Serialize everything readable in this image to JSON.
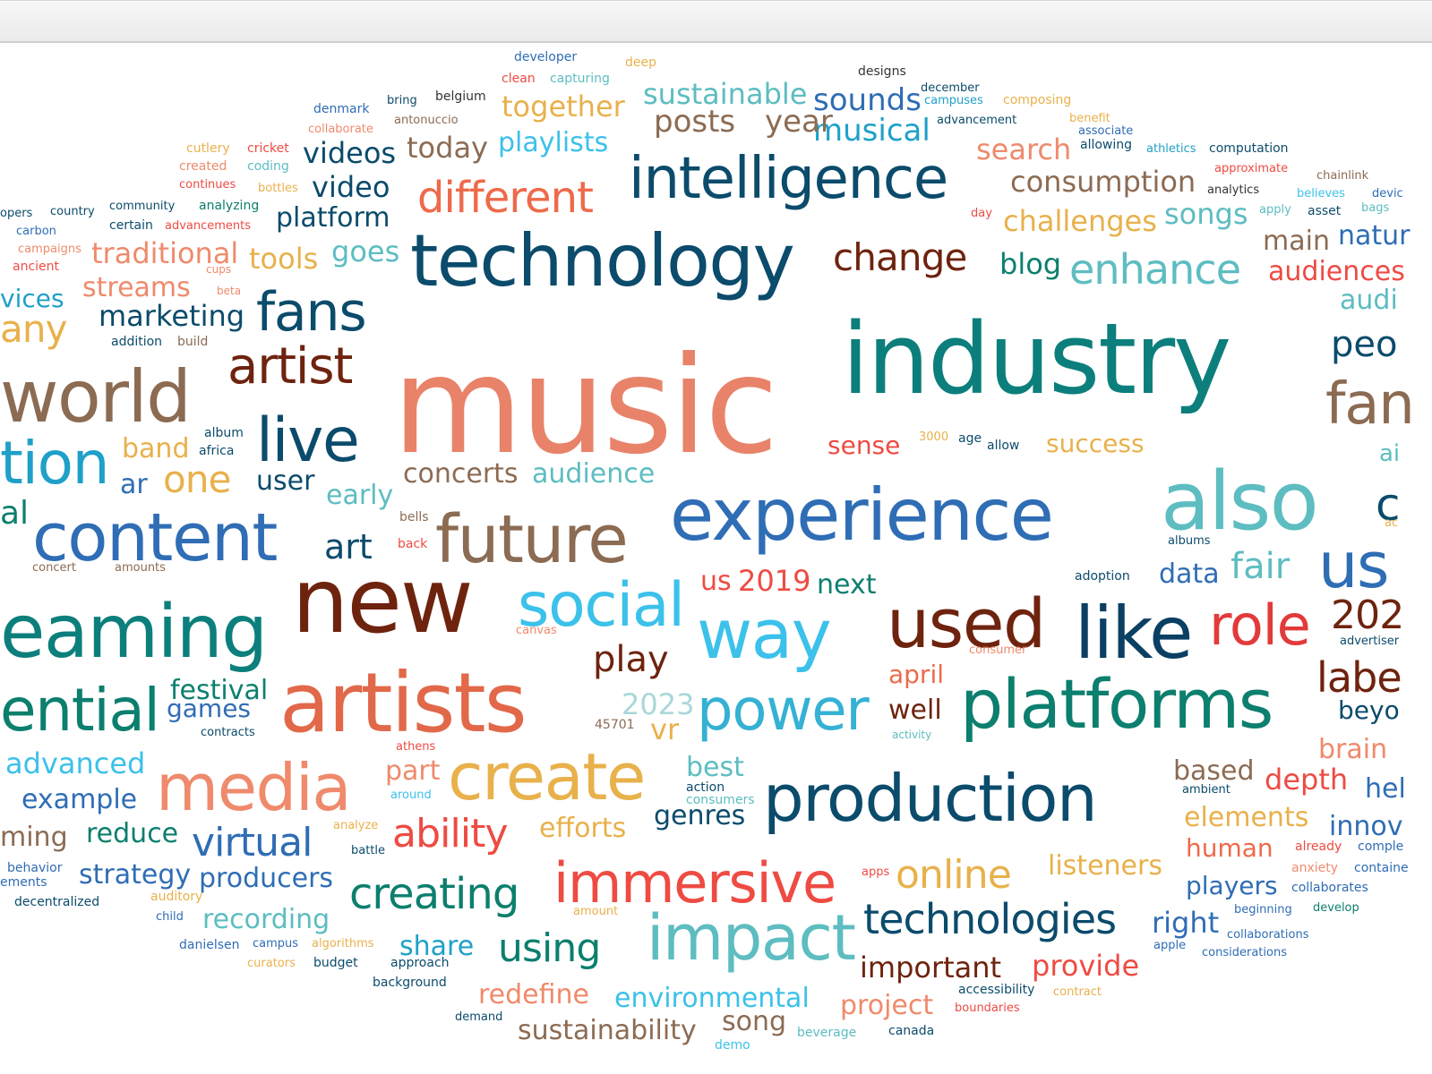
{
  "palette": [
    "#e2785c",
    "#0c7f80",
    "#0b4b6b",
    "#7c2b14",
    "#2f6db5",
    "#35b1d3",
    "#e8b14b",
    "#ee4b43",
    "#5db9bf",
    "#8c6b53",
    "#f08b50",
    "#4da0c9"
  ],
  "words": [
    {
      "t": "music",
      "c": "#e8836a"
    },
    {
      "t": "industry",
      "c": "#0c7f7c"
    },
    {
      "t": "technology",
      "c": "#0b4b6b"
    },
    {
      "t": "experience",
      "c": "#2f6db5"
    },
    {
      "t": "also",
      "c": "#5dbdc1"
    },
    {
      "t": "artists",
      "c": "#e2684a"
    },
    {
      "t": "new",
      "c": "#6e230e"
    },
    {
      "t": "intelligence",
      "c": "#0b4b6b"
    },
    {
      "t": "way",
      "c": "#3cc1ea"
    },
    {
      "t": "production",
      "c": "#0b4b6b"
    },
    {
      "t": "platforms",
      "c": "#0c7f6e"
    },
    {
      "t": "media",
      "c": "#ef8a6c"
    },
    {
      "t": "create",
      "c": "#e8b14b"
    },
    {
      "t": "content",
      "c": "#2f6db5"
    },
    {
      "t": "future",
      "c": "#8c6b53"
    },
    {
      "t": "like",
      "c": "#0b3f63"
    },
    {
      "t": "used",
      "c": "#6e230e"
    },
    {
      "t": "impact",
      "c": "#5dbdc1"
    },
    {
      "t": "immersive",
      "c": "#ee4b43"
    },
    {
      "t": "live",
      "c": "#0b4b6b"
    },
    {
      "t": "world",
      "c": "#8c6b53"
    },
    {
      "t": "eaming",
      "c": "#0c7f7c"
    },
    {
      "t": "fans",
      "c": "#0b4b6b"
    },
    {
      "t": "artist",
      "c": "#6e230e"
    },
    {
      "t": "social",
      "c": "#3cc1ea"
    },
    {
      "t": "power",
      "c": "#35b1d3"
    },
    {
      "t": "role",
      "c": "#e23a3a"
    },
    {
      "t": "ential",
      "c": "#0c7f6e"
    },
    {
      "t": "tion",
      "c": "#1fa0c9"
    },
    {
      "t": "different",
      "c": "#ee6a4a"
    },
    {
      "t": "technologies",
      "c": "#0b4b6b"
    },
    {
      "t": "creating",
      "c": "#0c7f6e"
    },
    {
      "t": "online",
      "c": "#e8b14b"
    },
    {
      "t": "enhance",
      "c": "#5dbdc1"
    },
    {
      "t": "change",
      "c": "#6e230e"
    },
    {
      "t": "ability",
      "c": "#ee4b43"
    },
    {
      "t": "virtual",
      "c": "#2f6db5"
    },
    {
      "t": "using",
      "c": "#0c7f6e"
    },
    {
      "t": "one",
      "c": "#e8b14b"
    },
    {
      "t": "play",
      "c": "#6e230e"
    },
    {
      "t": "any",
      "c": "#e8b14b"
    },
    {
      "t": "labe",
      "c": "#6e230e"
    },
    {
      "t": "us",
      "c": "#2f6db5"
    },
    {
      "t": "202",
      "c": "#6e230e"
    },
    {
      "t": "fan",
      "c": "#8c6b53"
    },
    {
      "t": "peo",
      "c": "#0b4b6b"
    },
    {
      "t": "c",
      "c": "#0b4b6b"
    },
    {
      "t": "sounds",
      "c": "#2f6db5"
    },
    {
      "t": "musical",
      "c": "#1fa0c9"
    },
    {
      "t": "sustainable",
      "c": "#5dbdc1"
    },
    {
      "t": "posts",
      "c": "#8c6b53"
    },
    {
      "t": "year",
      "c": "#8c6b53"
    },
    {
      "t": "together",
      "c": "#e8b14b"
    },
    {
      "t": "today",
      "c": "#8c6b53"
    },
    {
      "t": "playlists",
      "c": "#3cc1ea"
    },
    {
      "t": "videos",
      "c": "#0b4b6b"
    },
    {
      "t": "video",
      "c": "#0b4b6b"
    },
    {
      "t": "platform",
      "c": "#0b4b6b"
    },
    {
      "t": "traditional",
      "c": "#ef8a6c"
    },
    {
      "t": "tools",
      "c": "#e8b14b"
    },
    {
      "t": "goes",
      "c": "#5dbdc1"
    },
    {
      "t": "streams",
      "c": "#ef8a6c"
    },
    {
      "t": "marketing",
      "c": "#0b4b6b"
    },
    {
      "t": "vices",
      "c": "#1fa0c9"
    },
    {
      "t": "search",
      "c": "#ef8a6c"
    },
    {
      "t": "consumption",
      "c": "#8c6b53"
    },
    {
      "t": "challenges",
      "c": "#e8b14b"
    },
    {
      "t": "songs",
      "c": "#5dbdc1"
    },
    {
      "t": "blog",
      "c": "#0c7f6e"
    },
    {
      "t": "main",
      "c": "#8c6b53"
    },
    {
      "t": "natur",
      "c": "#2f6db5"
    },
    {
      "t": "audiences",
      "c": "#ee4b43"
    },
    {
      "t": "audi",
      "c": "#5dbdc1"
    },
    {
      "t": "band",
      "c": "#e8b14b"
    },
    {
      "t": "user",
      "c": "#0b4b6b"
    },
    {
      "t": "ar",
      "c": "#2f6db5"
    },
    {
      "t": "early",
      "c": "#5dbdc1"
    },
    {
      "t": "concerts",
      "c": "#8c6b53"
    },
    {
      "t": "audience",
      "c": "#5dbdc1"
    },
    {
      "t": "sense",
      "c": "#ee4b43"
    },
    {
      "t": "success",
      "c": "#e8b14b"
    },
    {
      "t": "al",
      "c": "#0c7f6e"
    },
    {
      "t": "art",
      "c": "#0b4b6b"
    },
    {
      "t": "us",
      "c": "#ee4b43"
    },
    {
      "t": "2019",
      "c": "#ee4b43"
    },
    {
      "t": "next",
      "c": "#0c7f6e"
    },
    {
      "t": "data",
      "c": "#2f6db5"
    },
    {
      "t": "fair",
      "c": "#5dbdc1"
    },
    {
      "t": "april",
      "c": "#ee6a4a"
    },
    {
      "t": "well",
      "c": "#6e230e"
    },
    {
      "t": "2023",
      "c": "#a9d7d9"
    },
    {
      "t": "vr",
      "c": "#e8b14b"
    },
    {
      "t": "festival",
      "c": "#0c7f6e"
    },
    {
      "t": "games",
      "c": "#2f6db5"
    },
    {
      "t": "beyo",
      "c": "#0b4b6b"
    },
    {
      "t": "brain",
      "c": "#ef8a6c"
    },
    {
      "t": "advanced",
      "c": "#3cc1ea"
    },
    {
      "t": "example",
      "c": "#2f6db5"
    },
    {
      "t": "part",
      "c": "#ef8a6c"
    },
    {
      "t": "best",
      "c": "#5dbdc1"
    },
    {
      "t": "based",
      "c": "#8c6b53"
    },
    {
      "t": "depth",
      "c": "#ee4b43"
    },
    {
      "t": "hel",
      "c": "#2f6db5"
    },
    {
      "t": "elements",
      "c": "#e8b14b"
    },
    {
      "t": "innov",
      "c": "#2f6db5"
    },
    {
      "t": "genres",
      "c": "#0b4b6b"
    },
    {
      "t": "efforts",
      "c": "#e8b14b"
    },
    {
      "t": "ming",
      "c": "#8c6b53"
    },
    {
      "t": "reduce",
      "c": "#0c7f6e"
    },
    {
      "t": "human",
      "c": "#ee6a4a"
    },
    {
      "t": "listeners",
      "c": "#e8b14b"
    },
    {
      "t": "strategy",
      "c": "#2f6db5"
    },
    {
      "t": "producers",
      "c": "#2f6db5"
    },
    {
      "t": "players",
      "c": "#2f6db5"
    },
    {
      "t": "recording",
      "c": "#5dbdc1"
    },
    {
      "t": "right",
      "c": "#2f6db5"
    },
    {
      "t": "share",
      "c": "#1fa0c9"
    },
    {
      "t": "important",
      "c": "#6e230e"
    },
    {
      "t": "provide",
      "c": "#ee4b43"
    },
    {
      "t": "redefine",
      "c": "#ef8a6c"
    },
    {
      "t": "environmental",
      "c": "#3cc1ea"
    },
    {
      "t": "project",
      "c": "#ef8a6c"
    },
    {
      "t": "sustainability",
      "c": "#8c6b53"
    },
    {
      "t": "song",
      "c": "#8c6b53"
    },
    {
      "t": "developer",
      "c": "#2f6db5"
    },
    {
      "t": "deep",
      "c": "#e8b14b"
    },
    {
      "t": "clean",
      "c": "#ee4b43"
    },
    {
      "t": "capturing",
      "c": "#5dbdc1"
    },
    {
      "t": "designs",
      "c": "#333333"
    },
    {
      "t": "december",
      "c": "#0b4b6b"
    },
    {
      "t": "campuses",
      "c": "#1fa0c9"
    },
    {
      "t": "composing",
      "c": "#e8b14b"
    },
    {
      "t": "bring",
      "c": "#0b4b6b"
    },
    {
      "t": "belgium",
      "c": "#333333"
    },
    {
      "t": "denmark",
      "c": "#2f6db5"
    },
    {
      "t": "antonuccio",
      "c": "#8c6b53"
    },
    {
      "t": "collaborate",
      "c": "#ef8a6c"
    },
    {
      "t": "advancement",
      "c": "#0b4b6b"
    },
    {
      "t": "benefit",
      "c": "#e8b14b"
    },
    {
      "t": "associate",
      "c": "#2f6db5"
    },
    {
      "t": "allowing",
      "c": "#0b4b6b"
    },
    {
      "t": "athletics",
      "c": "#1fa0c9"
    },
    {
      "t": "computation",
      "c": "#0b4b6b"
    },
    {
      "t": "approximate",
      "c": "#ee4b43"
    },
    {
      "t": "chainlink",
      "c": "#8c6b53"
    },
    {
      "t": "analytics",
      "c": "#333333"
    },
    {
      "t": "believes",
      "c": "#3cc1ea"
    },
    {
      "t": "devic",
      "c": "#2f6db5"
    },
    {
      "t": "cutlery",
      "c": "#e8b14b"
    },
    {
      "t": "cricket",
      "c": "#ee4b43"
    },
    {
      "t": "created",
      "c": "#ef8a6c"
    },
    {
      "t": "coding",
      "c": "#5dbdc1"
    },
    {
      "t": "continues",
      "c": "#ee4b43"
    },
    {
      "t": "bottles",
      "c": "#e8b14b"
    },
    {
      "t": "opers",
      "c": "#0b4b6b"
    },
    {
      "t": "country",
      "c": "#0b4b6b"
    },
    {
      "t": "community",
      "c": "#0b4b6b"
    },
    {
      "t": "analyzing",
      "c": "#0c7f6e"
    },
    {
      "t": "carbon",
      "c": "#2f6db5"
    },
    {
      "t": "certain",
      "c": "#0b4b6b"
    },
    {
      "t": "advancements",
      "c": "#ee4b43"
    },
    {
      "t": "campaigns",
      "c": "#ef8a6c"
    },
    {
      "t": "ancient",
      "c": "#ee4b43"
    },
    {
      "t": "cups",
      "c": "#ef8a6c"
    },
    {
      "t": "beta",
      "c": "#ef8a6c"
    },
    {
      "t": "day",
      "c": "#ee4b43"
    },
    {
      "t": "apply",
      "c": "#5dbdc1"
    },
    {
      "t": "asset",
      "c": "#0b4b6b"
    },
    {
      "t": "bags",
      "c": "#5dbdc1"
    },
    {
      "t": "addition",
      "c": "#0b4b6b"
    },
    {
      "t": "build",
      "c": "#8c6b53"
    },
    {
      "t": "album",
      "c": "#0b4b6b"
    },
    {
      "t": "africa",
      "c": "#0b4b6b"
    },
    {
      "t": "3000",
      "c": "#e8b14b"
    },
    {
      "t": "age",
      "c": "#0b4b6b"
    },
    {
      "t": "allow",
      "c": "#0b4b6b"
    },
    {
      "t": "ai",
      "c": "#5dbdc1"
    },
    {
      "t": "bells",
      "c": "#8c6b53"
    },
    {
      "t": "back",
      "c": "#ee4b43"
    },
    {
      "t": "concert",
      "c": "#8c6b53"
    },
    {
      "t": "amounts",
      "c": "#8c6b53"
    },
    {
      "t": "albums",
      "c": "#0b4b6b"
    },
    {
      "t": "adoption",
      "c": "#0b4b6b"
    },
    {
      "t": "ac",
      "c": "#e8b14b"
    },
    {
      "t": "canvas",
      "c": "#ef8a6c"
    },
    {
      "t": "consumer",
      "c": "#ef8a6c"
    },
    {
      "t": "advertiser",
      "c": "#0b4b6b"
    },
    {
      "t": "45701",
      "c": "#8c6b53"
    },
    {
      "t": "contracts",
      "c": "#0b4b6b"
    },
    {
      "t": "activity",
      "c": "#5dbdc1"
    },
    {
      "t": "athens",
      "c": "#ee4b43"
    },
    {
      "t": "around",
      "c": "#3cc1ea"
    },
    {
      "t": "action",
      "c": "#0b4b6b"
    },
    {
      "t": "consumers",
      "c": "#5dbdc1"
    },
    {
      "t": "ambient",
      "c": "#0b4b6b"
    },
    {
      "t": "analyze",
      "c": "#e8b14b"
    },
    {
      "t": "battle",
      "c": "#0b4b6b"
    },
    {
      "t": "already",
      "c": "#ee4b43"
    },
    {
      "t": "comple",
      "c": "#2f6db5"
    },
    {
      "t": "behavior",
      "c": "#2f6db5"
    },
    {
      "t": "ements",
      "c": "#2f6db5"
    },
    {
      "t": "apps",
      "c": "#ee4b43"
    },
    {
      "t": "anxiety",
      "c": "#ef8a6c"
    },
    {
      "t": "containe",
      "c": "#2f6db5"
    },
    {
      "t": "collaborates",
      "c": "#2f6db5"
    },
    {
      "t": "decentralized",
      "c": "#0b4b6b"
    },
    {
      "t": "auditory",
      "c": "#e8b14b"
    },
    {
      "t": "child",
      "c": "#2f6db5"
    },
    {
      "t": "amount",
      "c": "#e8b14b"
    },
    {
      "t": "beginning",
      "c": "#2f6db5"
    },
    {
      "t": "develop",
      "c": "#0c7f6e"
    },
    {
      "t": "collaborations",
      "c": "#2f6db5"
    },
    {
      "t": "apple",
      "c": "#2f6db5"
    },
    {
      "t": "considerations",
      "c": "#2f6db5"
    },
    {
      "t": "danielsen",
      "c": "#2f6db5"
    },
    {
      "t": "campus",
      "c": "#2f6db5"
    },
    {
      "t": "algorithms",
      "c": "#e8b14b"
    },
    {
      "t": "curators",
      "c": "#e8b14b"
    },
    {
      "t": "budget",
      "c": "#0b4b6b"
    },
    {
      "t": "approach",
      "c": "#0b4b6b"
    },
    {
      "t": "background",
      "c": "#0b4b6b"
    },
    {
      "t": "accessibility",
      "c": "#0b4b6b"
    },
    {
      "t": "contract",
      "c": "#e8b14b"
    },
    {
      "t": "boundaries",
      "c": "#ee4b43"
    },
    {
      "t": "demand",
      "c": "#0b4b6b"
    },
    {
      "t": "demo",
      "c": "#3cc1ea"
    },
    {
      "t": "beverage",
      "c": "#5dbdc1"
    },
    {
      "t": "canada",
      "c": "#0b4b6b"
    }
  ]
}
